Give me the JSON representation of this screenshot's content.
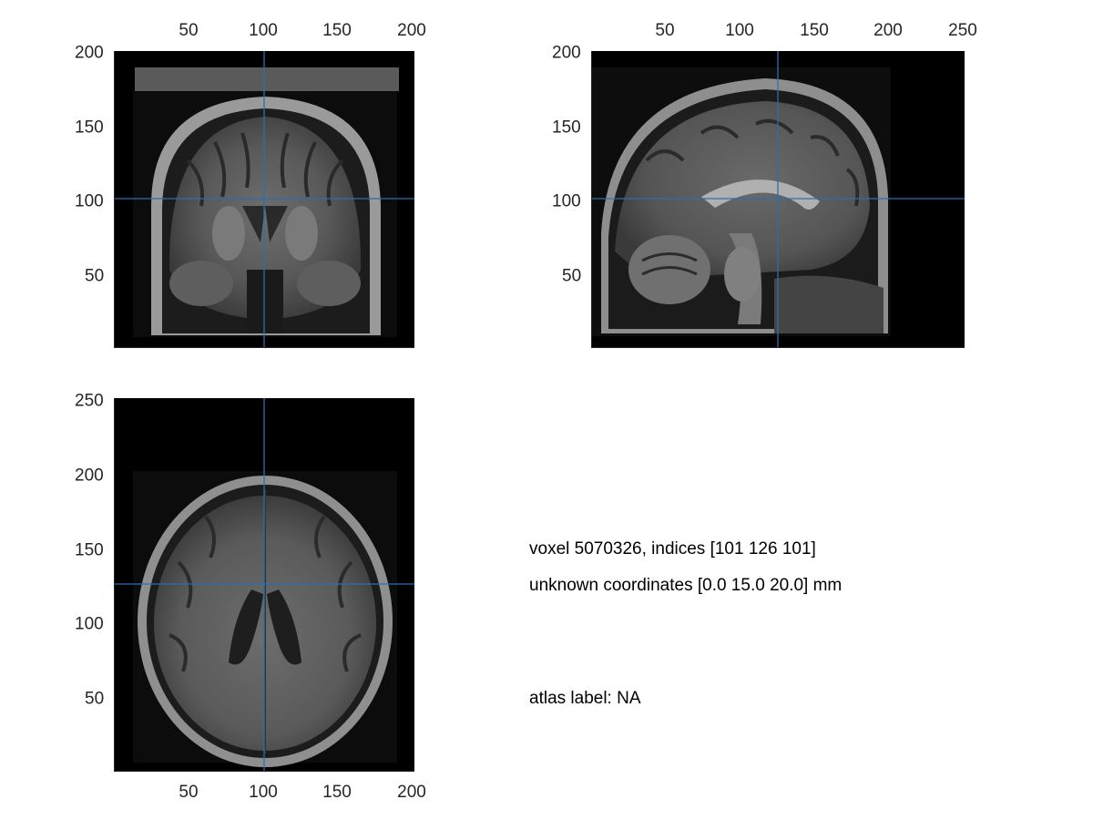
{
  "colors": {
    "crosshair": "#2a6fb0",
    "background": "#000000",
    "tick_text": "#262626"
  },
  "views": {
    "coronal": {
      "x_ticks": [
        "50",
        "100",
        "150",
        "200"
      ],
      "y_ticks": [
        "200",
        "150",
        "100",
        "50"
      ],
      "crosshair": {
        "x": 101,
        "y": 101
      }
    },
    "sagittal": {
      "x_ticks": [
        "50",
        "100",
        "150",
        "200",
        "250"
      ],
      "y_ticks": [
        "200",
        "150",
        "100",
        "50"
      ],
      "crosshair": {
        "x": 126,
        "y": 101
      }
    },
    "axial": {
      "x_ticks": [
        "50",
        "100",
        "150",
        "200"
      ],
      "y_ticks": [
        "250",
        "200",
        "150",
        "100",
        "50"
      ],
      "crosshair": {
        "x": 101,
        "y": 126
      }
    }
  },
  "info": {
    "voxel_line": "voxel 5070326, indices [101 126 101]",
    "coord_line": "unknown coordinates [0.0 15.0 20.0] mm",
    "atlas_line": "atlas label: NA"
  }
}
